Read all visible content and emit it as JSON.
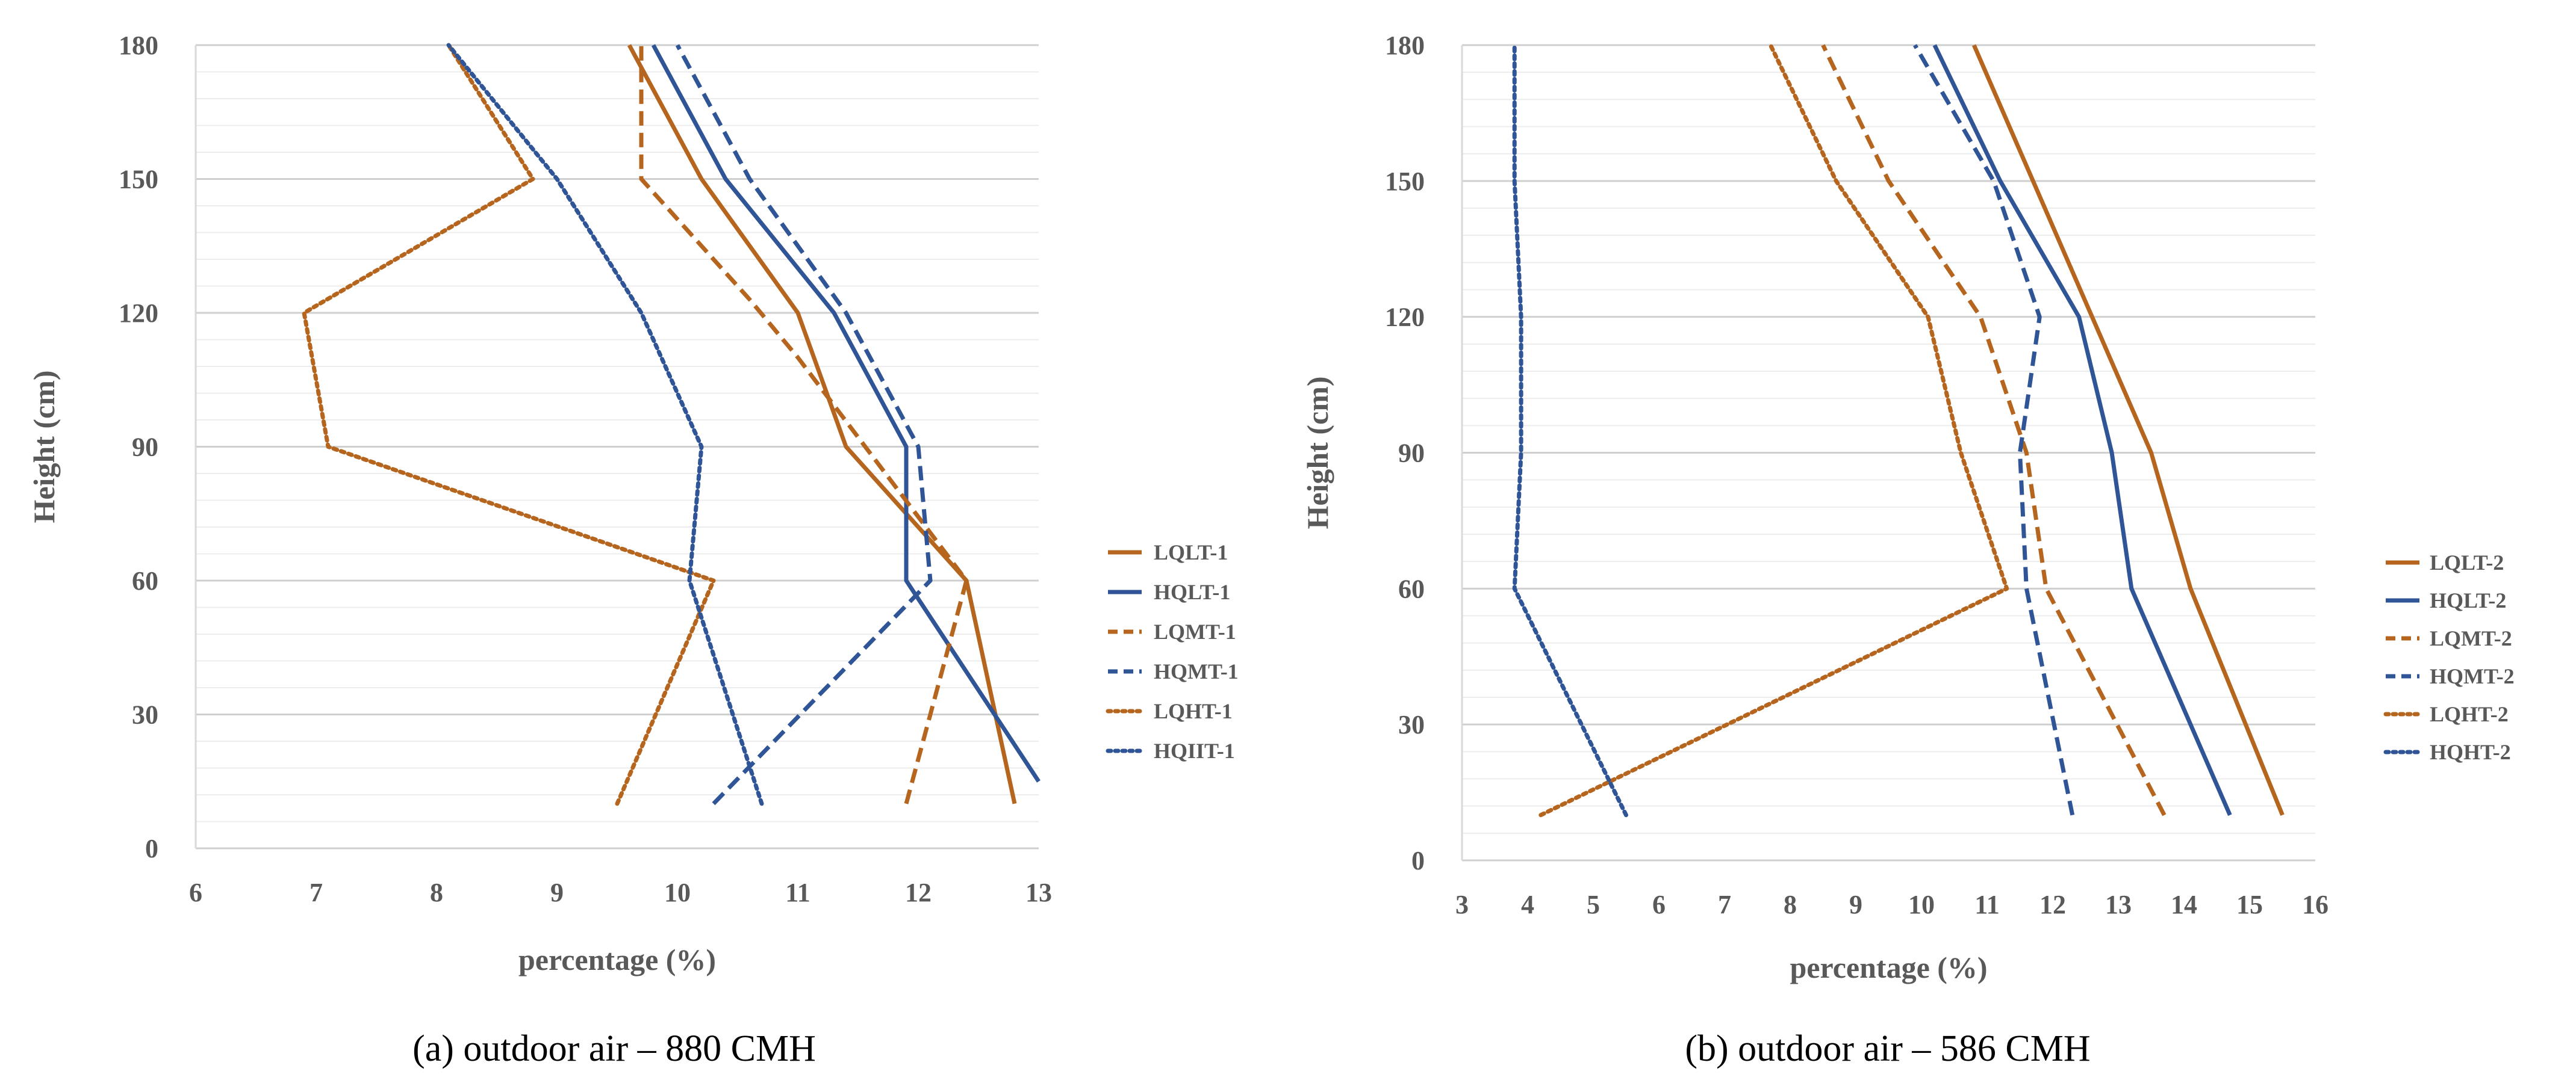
{
  "chart_data": [
    {
      "type": "line",
      "caption": "(a) outdoor air – 880 CMH",
      "xlabel": "percentage (%)",
      "ylabel": "Height (cm)",
      "xlim": [
        6,
        13
      ],
      "ylim": [
        0,
        180
      ],
      "xticks": [
        "6",
        "7",
        "8",
        "9",
        "10",
        "11",
        "12",
        "13"
      ],
      "yticks": [
        "0",
        "30",
        "60",
        "90",
        "120",
        "150",
        "180"
      ],
      "grid": true,
      "legend_position": "right",
      "series": [
        {
          "name": "LQLT-1",
          "color": "#b5651d",
          "dash": "solid",
          "points": [
            [
              12.8,
              10
            ],
            [
              12.4,
              60
            ],
            [
              11.4,
              90
            ],
            [
              11.0,
              120
            ],
            [
              10.2,
              150
            ],
            [
              9.6,
              180
            ]
          ]
        },
        {
          "name": "HQLT-1",
          "color": "#2f5597",
          "dash": "solid",
          "points": [
            [
              13.0,
              15
            ],
            [
              11.9,
              60
            ],
            [
              11.9,
              90
            ],
            [
              11.3,
              120
            ],
            [
              10.4,
              150
            ],
            [
              9.8,
              180
            ]
          ]
        },
        {
          "name": "LQMT-1",
          "color": "#b5651d",
          "dash": "dashed",
          "points": [
            [
              11.9,
              10
            ],
            [
              12.4,
              60
            ],
            [
              11.0,
              110
            ],
            [
              10.6,
              123
            ],
            [
              9.7,
              150
            ],
            [
              9.7,
              180
            ]
          ]
        },
        {
          "name": "HQMT-1",
          "color": "#2f5597",
          "dash": "dashed",
          "points": [
            [
              10.3,
              10
            ],
            [
              12.1,
              60
            ],
            [
              12.0,
              90
            ],
            [
              11.4,
              120
            ],
            [
              10.6,
              150
            ],
            [
              10.0,
              180
            ]
          ]
        },
        {
          "name": "LQHT-1",
          "color": "#b5651d",
          "dash": "dotted",
          "points": [
            [
              9.5,
              10
            ],
            [
              10.3,
              60
            ],
            [
              7.1,
              90
            ],
            [
              6.9,
              120
            ],
            [
              8.8,
              150
            ],
            [
              8.1,
              180
            ]
          ]
        },
        {
          "name": "HQIIT-1",
          "color": "#2f5597",
          "dash": "dotted",
          "points": [
            [
              10.7,
              10
            ],
            [
              10.1,
              60
            ],
            [
              10.2,
              90
            ],
            [
              9.7,
              120
            ],
            [
              9.0,
              150
            ],
            [
              8.1,
              180
            ]
          ]
        }
      ]
    },
    {
      "type": "line",
      "caption": "(b) outdoor air – 586 CMH",
      "xlabel": "percentage (%)",
      "ylabel": "Height (cm)",
      "xlim": [
        3,
        16
      ],
      "ylim": [
        0,
        180
      ],
      "xticks": [
        "3",
        "4",
        "5",
        "6",
        "7",
        "8",
        "9",
        "10",
        "11",
        "12",
        "13",
        "14",
        "15",
        "16"
      ],
      "yticks": [
        "0",
        "30",
        "60",
        "90",
        "120",
        "150",
        "180"
      ],
      "grid": true,
      "legend_position": "right",
      "series": [
        {
          "name": "LQLT-2",
          "color": "#b5651d",
          "dash": "solid",
          "points": [
            [
              15.5,
              10
            ],
            [
              14.1,
              60
            ],
            [
              13.5,
              90
            ],
            [
              12.6,
              120
            ],
            [
              11.7,
              150
            ],
            [
              10.8,
              180
            ]
          ]
        },
        {
          "name": "HQLT-2",
          "color": "#2f5597",
          "dash": "solid",
          "points": [
            [
              14.7,
              10
            ],
            [
              13.2,
              60
            ],
            [
              12.9,
              90
            ],
            [
              12.4,
              120
            ],
            [
              11.2,
              150
            ],
            [
              10.2,
              180
            ]
          ]
        },
        {
          "name": "LQMT-2",
          "color": "#b5651d",
          "dash": "dashed",
          "points": [
            [
              13.7,
              10
            ],
            [
              11.9,
              60
            ],
            [
              11.6,
              90
            ],
            [
              10.9,
              120
            ],
            [
              9.5,
              150
            ],
            [
              8.5,
              180
            ]
          ]
        },
        {
          "name": "HQMT-2",
          "color": "#2f5597",
          "dash": "dashed",
          "points": [
            [
              12.3,
              10
            ],
            [
              11.6,
              60
            ],
            [
              11.5,
              90
            ],
            [
              11.8,
              120
            ],
            [
              11.1,
              150
            ],
            [
              9.9,
              180
            ]
          ]
        },
        {
          "name": "LQHT-2",
          "color": "#b5651d",
          "dash": "dotted",
          "points": [
            [
              4.2,
              10
            ],
            [
              11.3,
              60
            ],
            [
              10.6,
              90
            ],
            [
              10.1,
              120
            ],
            [
              8.7,
              150
            ],
            [
              7.7,
              180
            ]
          ]
        },
        {
          "name": "HQHT-2",
          "color": "#2f5597",
          "dash": "dotted",
          "points": [
            [
              5.5,
              10
            ],
            [
              3.8,
              60
            ],
            [
              3.9,
              90
            ],
            [
              3.9,
              120
            ],
            [
              3.8,
              150
            ],
            [
              3.8,
              180
            ]
          ]
        }
      ]
    }
  ]
}
